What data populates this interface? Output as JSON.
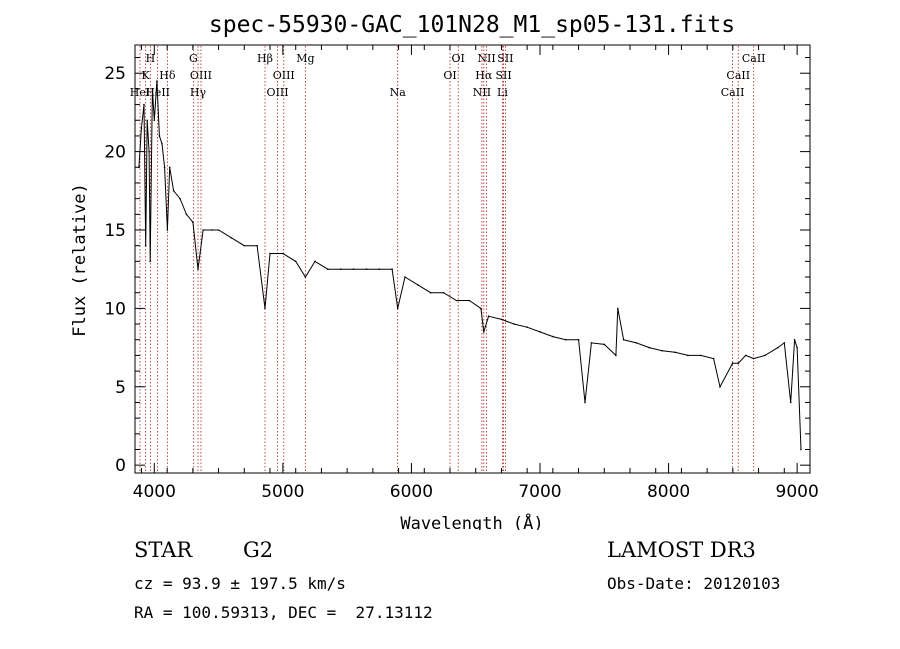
{
  "chart_data": {
    "type": "line",
    "title": "spec-55930-GAC_101N28_M1_sp05-131.fits",
    "xlabel": "Wavelength (Å)",
    "ylabel": "Flux (relative)",
    "xlim": [
      3850,
      9100
    ],
    "ylim": [
      -0.5,
      26.8
    ],
    "xticks": [
      4000,
      5000,
      6000,
      7000,
      8000,
      9000
    ],
    "yticks": [
      0,
      5,
      10,
      15,
      20,
      25
    ],
    "series": [
      {
        "name": "spectrum",
        "x": [
          3880,
          3900,
          3920,
          3933,
          3945,
          3960,
          3968,
          3985,
          4000,
          4020,
          4040,
          4060,
          4080,
          4102,
          4120,
          4150,
          4200,
          4250,
          4300,
          4340,
          4380,
          4450,
          4500,
          4600,
          4700,
          4800,
          4861,
          4900,
          5000,
          5100,
          5175,
          5250,
          5350,
          5450,
          5550,
          5650,
          5750,
          5850,
          5893,
          5950,
          6050,
          6150,
          6250,
          6350,
          6450,
          6540,
          6563,
          6600,
          6700,
          6800,
          6900,
          7000,
          7100,
          7200,
          7300,
          7350,
          7400,
          7500,
          7590,
          7605,
          7650,
          7750,
          7850,
          7950,
          8050,
          8150,
          8250,
          8350,
          8400,
          8498,
          8542,
          8600,
          8662,
          8750,
          8850,
          8900,
          8950,
          8980,
          9000,
          9030
        ],
        "y": [
          19,
          21.5,
          23,
          14,
          22,
          20,
          13,
          24,
          22,
          24.5,
          21,
          20.5,
          19,
          15,
          19,
          17.5,
          17,
          16,
          15.5,
          12.5,
          15,
          15,
          15,
          14.5,
          14,
          14,
          10,
          13.5,
          13.5,
          13,
          12,
          13,
          12.5,
          12.5,
          12.5,
          12.5,
          12.5,
          12.5,
          10,
          12,
          11.5,
          11,
          11,
          10.5,
          10.5,
          10,
          8.5,
          9.5,
          9.3,
          9,
          8.8,
          8.5,
          8.2,
          8,
          8,
          4,
          7.8,
          7.7,
          7,
          10,
          8,
          7.8,
          7.5,
          7.3,
          7.2,
          7,
          7,
          6.8,
          5,
          6.5,
          6.5,
          7,
          6.8,
          7,
          7.5,
          7.8,
          4,
          8,
          7.5,
          1
        ]
      }
    ],
    "lines": [
      {
        "label": "H",
        "wave": 3970,
        "row": 0
      },
      {
        "label": "K",
        "wave": 3933,
        "row": 1
      },
      {
        "label": "Hδ",
        "wave": 4102,
        "row": 1
      },
      {
        "label": "HeI",
        "wave": 3889,
        "row": 2
      },
      {
        "label": "HeII",
        "wave": 4026,
        "row": 2
      },
      {
        "label": "G",
        "wave": 4304,
        "row": 0
      },
      {
        "label": "OIII",
        "wave": 4363,
        "row": 1
      },
      {
        "label": "Hγ",
        "wave": 4340,
        "row": 2
      },
      {
        "label": "Hβ",
        "wave": 4861,
        "row": 0
      },
      {
        "label": "OIII",
        "wave": 5007,
        "row": 1
      },
      {
        "label": "OIII",
        "wave": 4959,
        "row": 2
      },
      {
        "label": "Mg",
        "wave": 5175,
        "row": 0
      },
      {
        "label": "Na",
        "wave": 5893,
        "row": 2
      },
      {
        "label": "OI",
        "wave": 6364,
        "row": 0
      },
      {
        "label": "OI",
        "wave": 6300,
        "row": 1
      },
      {
        "label": "NII",
        "wave": 6584,
        "row": 0
      },
      {
        "label": "Hα",
        "wave": 6563,
        "row": 1
      },
      {
        "label": "NII",
        "wave": 6548,
        "row": 2
      },
      {
        "label": "SII",
        "wave": 6731,
        "row": 0
      },
      {
        "label": "SII",
        "wave": 6717,
        "row": 1
      },
      {
        "label": "Li",
        "wave": 6708,
        "row": 2
      },
      {
        "label": "CaII",
        "wave": 8662,
        "row": 0
      },
      {
        "label": "CaII",
        "wave": 8542,
        "row": 1
      },
      {
        "label": "CaII",
        "wave": 8498,
        "row": 2
      }
    ]
  },
  "info": {
    "object_class": "STAR",
    "subclass": "G2",
    "survey": "LAMOST DR3",
    "cz": "cz = 93.9 ± 197.5 km/s",
    "obs_date": "Obs-Date: 20120103",
    "coords": "RA = 100.59313, DEC =  27.13112"
  }
}
